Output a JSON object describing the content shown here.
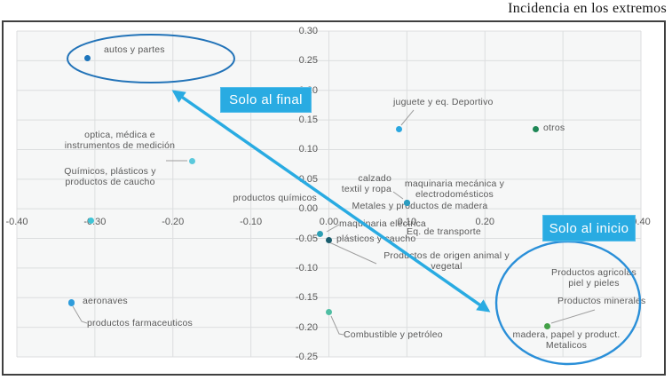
{
  "title": "Incidencia en los extremos",
  "annotations": {
    "final_box": "Solo al final",
    "inicio_box": "Solo al inicio"
  },
  "colors": {
    "accent_blue": "#29abe2",
    "ellipse_final_stroke": "#2273b8",
    "ellipse_inicio_stroke": "#2a8fd8",
    "gridline": "#dcdedf",
    "plot_background": "#f6f7f7",
    "label_text": "#595959",
    "leader_line": "#9e9e9e"
  },
  "chart_data": {
    "type": "scatter",
    "title": "Incidencia en los extremos",
    "grid": true,
    "legend": "none",
    "x_axis": {
      "min": -0.4,
      "max": 0.4,
      "tick_step": 0.1,
      "ticks": [
        -0.4,
        -0.3,
        -0.2,
        -0.1,
        0.0,
        0.1,
        0.2,
        0.3,
        0.4
      ],
      "tick_labels": [
        "-0.40",
        "-0.30",
        "-0.20",
        "-0.10",
        "0.00",
        "0.10",
        "0.20",
        "0.30",
        "0.40"
      ]
    },
    "y_axis": {
      "min": -0.25,
      "max": 0.3,
      "tick_step": 0.05,
      "ticks": [
        0.3,
        0.25,
        0.2,
        0.15,
        0.1,
        0.05,
        0.0,
        -0.05,
        -0.1,
        -0.15,
        -0.2,
        -0.25
      ],
      "tick_labels": [
        "0.30",
        "0.25",
        "0.20",
        "0.15",
        "0.10",
        "0.05",
        "0.00",
        "-0.05",
        "-0.10",
        "-0.15",
        "-0.20",
        "-0.25"
      ]
    },
    "points": [
      {
        "id": "autos",
        "label": "autos y partes",
        "x": -0.31,
        "y": 0.255,
        "color": "#1c75bc",
        "point_visible": true
      },
      {
        "id": "optica",
        "label": "optica, médica e\ninstrumentos de medición",
        "x": -0.175,
        "y": 0.08,
        "color": "#5bc9dc",
        "point_visible": true
      },
      {
        "id": "quimicos-caucho",
        "label": "Químicos, plásticos y\nproductos de caucho",
        "x": -0.305,
        "y": -0.02,
        "color": "#40c4d6",
        "point_visible": true
      },
      {
        "id": "prod-quimicos",
        "label": "productos químicos",
        "x": -0.01,
        "y": 0.02,
        "color": "#2b9cc0",
        "point_visible": false
      },
      {
        "id": "juguete",
        "label": "juguete y eq. Deportivo",
        "x": 0.09,
        "y": 0.135,
        "color": "#2ba7e0",
        "point_visible": true
      },
      {
        "id": "calzado",
        "label": "calzado\ntextil y ropa",
        "x": 0.1,
        "y": 0.01,
        "color": "#2b9cc0",
        "point_visible": true
      },
      {
        "id": "maq-mecanica",
        "label": "maquinaria mecánica y\nelectrodomésticos",
        "x": 0.1,
        "y": 0.01,
        "color": "#2b9cc0",
        "point_visible": true
      },
      {
        "id": "metales",
        "label": "Metales y productos de madera",
        "x": 0.1,
        "y": 0.01,
        "color": "#2b9cc0",
        "point_visible": true
      },
      {
        "id": "otros",
        "label": "otros",
        "x": 0.265,
        "y": 0.135,
        "color": "#1e8756",
        "point_visible": true
      },
      {
        "id": "maq-electrica",
        "label": "maquinaria eléctrica",
        "x": -0.011,
        "y": -0.042,
        "color": "#2d9fb4",
        "point_visible": true
      },
      {
        "id": "eq-transporte",
        "label": "Eq. de transporte",
        "x": 0.0,
        "y": -0.045,
        "color": "#2d9fb4",
        "point_visible": false
      },
      {
        "id": "plasticos",
        "label": "plásticos y caucho",
        "x": 0.0,
        "y": -0.053,
        "color": "#1a5e6e",
        "point_visible": true
      },
      {
        "id": "origen-animal",
        "label": "Productos de origen animal y\nvegetal",
        "x": 0.0,
        "y": -0.05,
        "color": "#1a5e6e",
        "point_visible": false
      },
      {
        "id": "aeronaves",
        "label": "aeronaves",
        "x": -0.33,
        "y": -0.158,
        "color": "#2e9cdb",
        "point_visible": true
      },
      {
        "id": "farmaceuticos",
        "label": "productos farmaceuticos",
        "x": -0.33,
        "y": -0.16,
        "color": "#2e9cdb",
        "point_visible": true
      },
      {
        "id": "combustible",
        "label": "Combustible y petróleo",
        "x": 0.0,
        "y": -0.174,
        "color": "#4fbea3",
        "point_visible": true
      },
      {
        "id": "agricolas",
        "label": "Productos agricolas\npiel y pieles",
        "x": 0.28,
        "y": -0.2,
        "color": "#43a047",
        "point_visible": false
      },
      {
        "id": "minerales",
        "label": "Productos minerales",
        "x": 0.28,
        "y": -0.199,
        "color": "#43a047",
        "point_visible": true
      },
      {
        "id": "madera",
        "label": "madera, papel y product.\nMetalicos",
        "x": 0.28,
        "y": -0.2,
        "color": "#43a047",
        "point_visible": false
      }
    ]
  }
}
